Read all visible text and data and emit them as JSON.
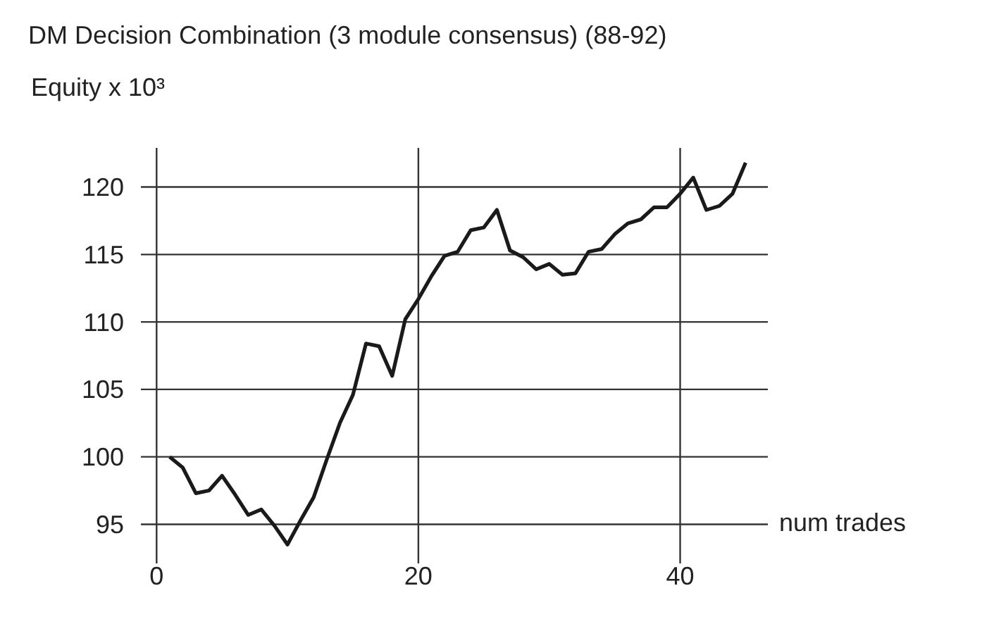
{
  "chart_data": {
    "type": "line",
    "title": "DM Decision Combination (3 module consensus) (88-92)",
    "ylabel": "Equity x 10³",
    "xlabel": "num trades",
    "x": [
      1,
      2,
      3,
      4,
      5,
      6,
      7,
      8,
      9,
      10,
      11,
      12,
      13,
      14,
      15,
      16,
      17,
      18,
      19,
      20,
      21,
      22,
      23,
      24,
      25,
      26,
      27,
      28,
      29,
      30,
      31,
      32,
      33,
      34,
      35,
      36,
      37,
      38,
      39,
      40,
      41,
      42,
      43,
      44,
      45
    ],
    "series": [
      {
        "color": "#1a1a1a",
        "values": [
          100.0,
          99.2,
          97.3,
          97.5,
          98.6,
          97.2,
          95.7,
          96.1,
          94.9,
          93.5,
          95.3,
          97.0,
          99.8,
          102.5,
          104.6,
          108.4,
          108.2,
          106.0,
          110.2,
          111.7,
          113.4,
          114.9,
          115.2,
          116.8,
          117.0,
          118.3,
          115.3,
          114.8,
          113.9,
          114.3,
          113.5,
          113.6,
          115.2,
          115.4,
          116.5,
          117.3,
          117.6,
          118.5,
          118.5,
          119.5,
          120.7,
          118.3,
          118.6,
          119.5,
          121.8
        ]
      }
    ],
    "xlim": [
      -1.2,
      46.7
    ],
    "ylim": [
      92.1,
      122.9
    ],
    "xticks": [
      0,
      20,
      40
    ],
    "yticks": [
      95,
      100,
      105,
      110,
      115,
      120
    ],
    "grid": true,
    "marker": "none",
    "line_style": "solid"
  }
}
